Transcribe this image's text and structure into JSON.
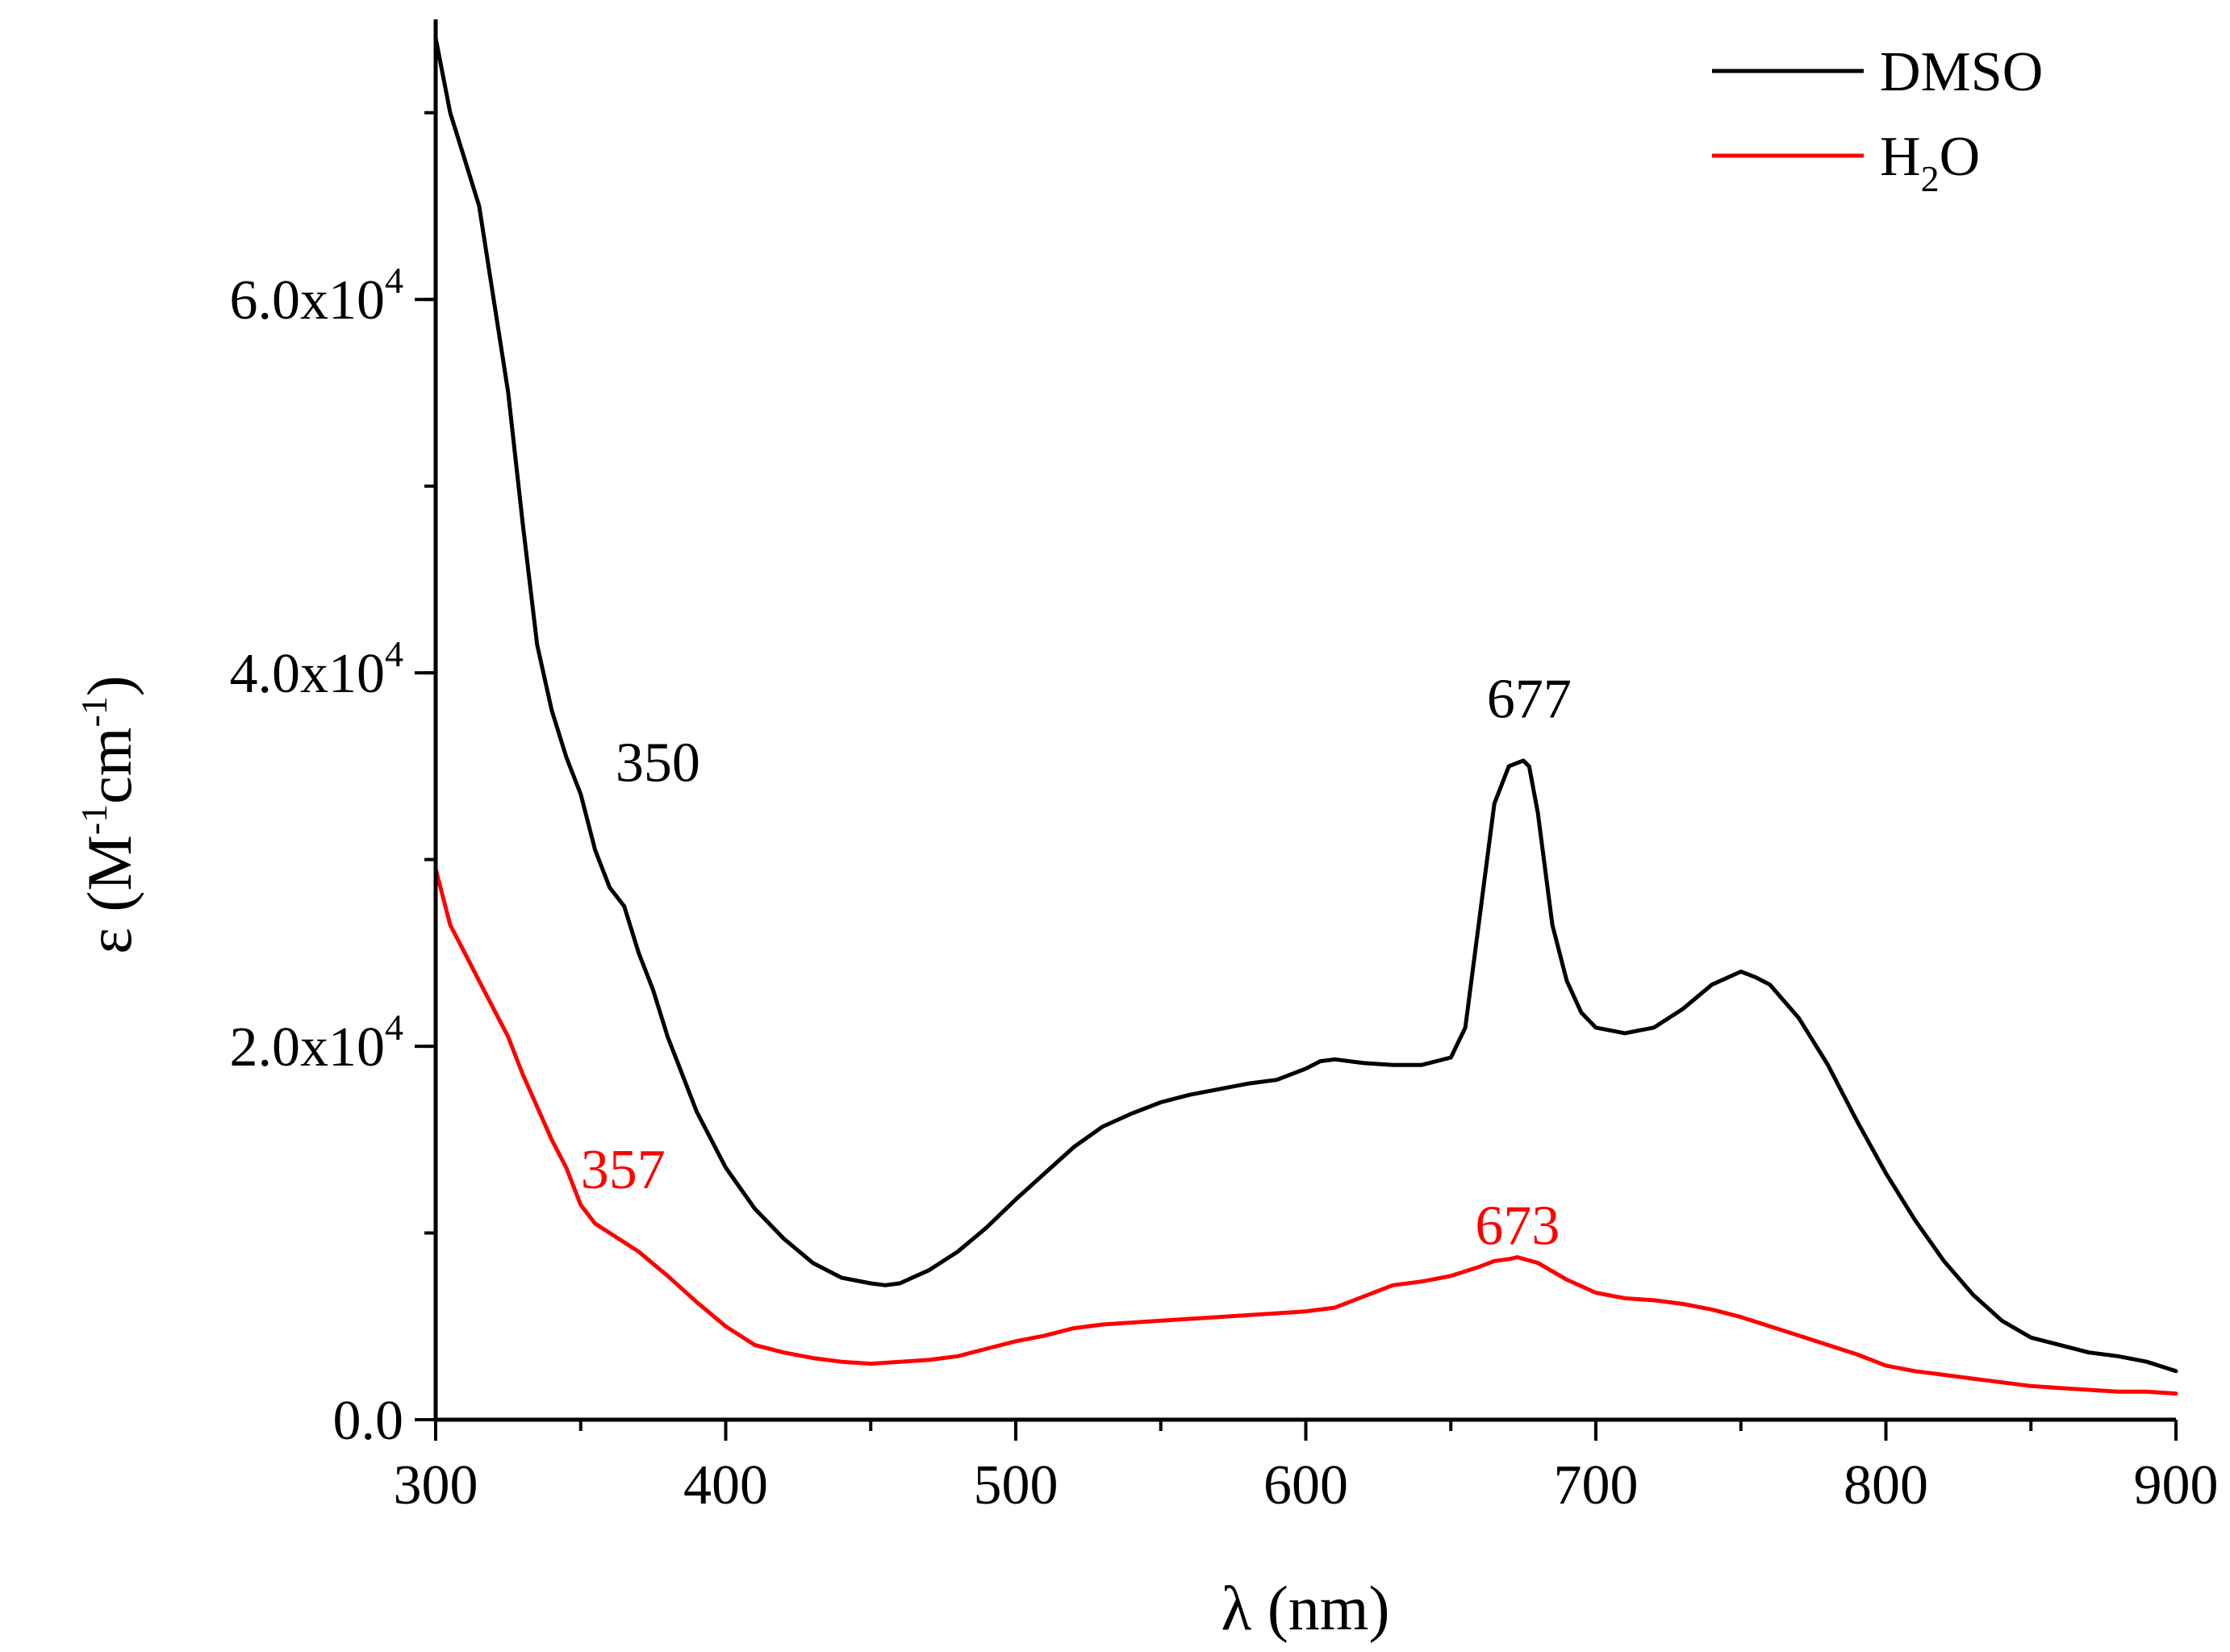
{
  "chart_data": {
    "type": "line",
    "title": "",
    "xlabel": "λ (nm)",
    "ylabel": {
      "base": "ε (M",
      "exp1": "-1",
      "mid": "cm",
      "exp2": "-1",
      "end": ")"
    },
    "xlim": [
      300,
      900
    ],
    "ylim": [
      0,
      75000
    ],
    "x_ticks": [
      {
        "value": 300,
        "label": "300"
      },
      {
        "value": 400,
        "label": "400"
      },
      {
        "value": 500,
        "label": "500"
      },
      {
        "value": 600,
        "label": "600"
      },
      {
        "value": 700,
        "label": "700"
      },
      {
        "value": 800,
        "label": "800"
      },
      {
        "value": 900,
        "label": "900"
      }
    ],
    "x_minor_step": 50,
    "y_ticks": [
      {
        "value": 0,
        "mant": "0.0",
        "exp": ""
      },
      {
        "value": 20000,
        "mant": "2.0x10",
        "exp": "4"
      },
      {
        "value": 40000,
        "mant": "4.0x10",
        "exp": "4"
      },
      {
        "value": 60000,
        "mant": "6.0x10",
        "exp": "4"
      }
    ],
    "y_minor_step": 10000,
    "grid": false,
    "legend_position": "top-right",
    "series": [
      {
        "name": "DMSO",
        "legend_base": "DMSO",
        "legend_sub": "",
        "legend_end": "",
        "color": "#000000",
        "x": [
          300,
          305,
          310,
          315,
          320,
          325,
          330,
          335,
          340,
          345,
          350,
          355,
          360,
          365,
          370,
          375,
          380,
          385,
          390,
          395,
          400,
          410,
          420,
          430,
          440,
          450,
          455,
          460,
          470,
          480,
          490,
          500,
          510,
          520,
          530,
          540,
          550,
          560,
          570,
          580,
          590,
          600,
          605,
          610,
          620,
          630,
          640,
          650,
          655,
          660,
          665,
          670,
          675,
          677,
          680,
          685,
          690,
          695,
          700,
          710,
          720,
          730,
          740,
          750,
          755,
          760,
          770,
          780,
          790,
          800,
          810,
          820,
          830,
          840,
          850,
          860,
          870,
          880,
          890,
          900
        ],
        "y": [
          74000,
          70000,
          67500,
          65000,
          60000,
          55000,
          48000,
          41500,
          38000,
          35500,
          33500,
          30500,
          28500,
          27500,
          25000,
          23000,
          20500,
          18500,
          16500,
          15000,
          13500,
          11300,
          9700,
          8400,
          7600,
          7300,
          7200,
          7300,
          8000,
          9000,
          10300,
          11800,
          13200,
          14600,
          15700,
          16400,
          17000,
          17400,
          17700,
          18000,
          18200,
          18800,
          19200,
          19300,
          19100,
          19000,
          19000,
          19400,
          21000,
          27000,
          33000,
          35000,
          35300,
          35000,
          32500,
          26500,
          23500,
          21800,
          21000,
          20700,
          21000,
          22000,
          23300,
          24000,
          23700,
          23300,
          21500,
          19000,
          16000,
          13200,
          10700,
          8500,
          6700,
          5300,
          4400,
          4000,
          3600,
          3400,
          3100,
          2600
        ]
      },
      {
        "name": "H2O",
        "legend_base": "H",
        "legend_sub": "2",
        "legend_end": "O",
        "color": "#ff0000",
        "x": [
          300,
          305,
          310,
          315,
          320,
          325,
          330,
          340,
          345,
          350,
          355,
          357,
          360,
          370,
          380,
          390,
          400,
          410,
          420,
          430,
          440,
          450,
          460,
          470,
          480,
          490,
          500,
          510,
          520,
          530,
          540,
          550,
          560,
          570,
          580,
          590,
          600,
          610,
          620,
          630,
          640,
          650,
          660,
          665,
          670,
          673,
          680,
          690,
          700,
          710,
          720,
          730,
          740,
          750,
          760,
          770,
          780,
          790,
          800,
          810,
          820,
          830,
          840,
          850,
          860,
          870,
          880,
          890,
          900
        ],
        "y": [
          29500,
          26500,
          25000,
          23500,
          22000,
          20500,
          18500,
          15000,
          13500,
          11500,
          10500,
          10300,
          10000,
          9000,
          7700,
          6300,
          5000,
          4000,
          3600,
          3300,
          3100,
          3000,
          3100,
          3200,
          3400,
          3800,
          4200,
          4500,
          4900,
          5100,
          5200,
          5300,
          5400,
          5500,
          5600,
          5700,
          5800,
          6000,
          6600,
          7200,
          7400,
          7700,
          8200,
          8500,
          8600,
          8700,
          8400,
          7500,
          6800,
          6500,
          6400,
          6200,
          5900,
          5500,
          5000,
          4500,
          4000,
          3500,
          2900,
          2600,
          2400,
          2200,
          2000,
          1800,
          1700,
          1600,
          1500,
          1500,
          1400
        ]
      }
    ],
    "annotations": [
      {
        "text": "350",
        "x": 362,
        "y": 34200,
        "color": "#000000",
        "anchor": "start"
      },
      {
        "text": "677",
        "x": 677,
        "y": 37600,
        "color": "#000000",
        "anchor": "middle"
      },
      {
        "text": "357",
        "x": 350,
        "y": 12400,
        "color": "#ff0000",
        "anchor": "start"
      },
      {
        "text": "673",
        "x": 673,
        "y": 9400,
        "color": "#ff0000",
        "anchor": "middle"
      }
    ]
  }
}
